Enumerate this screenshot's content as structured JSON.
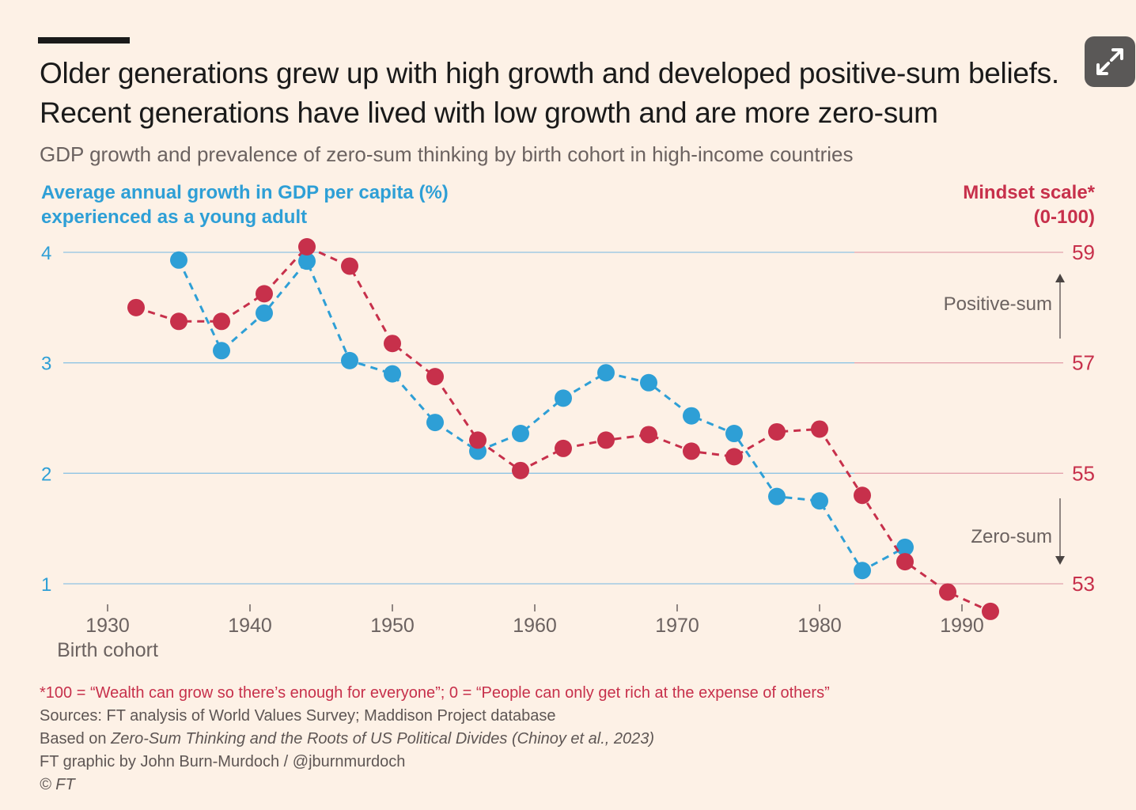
{
  "title": "Older generations grew up with high growth and developed positive-sum beliefs. Recent generations have lived with low growth and are more zero-sum",
  "subtitle": "GDP growth and prevalence of zero-sum thinking by birth cohort in high-income countries",
  "left_axis_label": [
    "Average annual growth in GDP per capita (%)",
    "experienced as a young adult"
  ],
  "right_axis_label": [
    "Mindset scale*",
    "(0-100)"
  ],
  "footnotes": {
    "asterisk": "*100 = “Wealth can grow so there’s enough for everyone”; 0 = “People can only get rich at the expense of others”",
    "sources": "Sources: FT analysis of World Values Survey; Maddison Project database",
    "based_on_prefix": "Based on ",
    "based_on_title": "Zero-Sum Thinking and the Roots of US Political Divides (Chinoy et al., 2023)",
    "credit": "FT graphic by John Burn-Murdoch / @jburnmurdoch",
    "copyright": "© FT"
  },
  "colors": {
    "gdp": "#2e9fd6",
    "mindset": "#c7304b",
    "background": "#fdf1e6"
  },
  "chart_data": {
    "type": "line",
    "xlabel": "Birth cohort",
    "x_ticks": [
      1930,
      1940,
      1950,
      1960,
      1970,
      1980,
      1990
    ],
    "xlim": [
      1926,
      1995
    ],
    "y_left": {
      "label": "Average annual growth in GDP per capita (%) experienced as a young adult",
      "lim": [
        1,
        4
      ],
      "ticks": [
        1,
        2,
        3,
        4
      ]
    },
    "y_right": {
      "label": "Mindset scale* (0-100)",
      "lim": [
        53,
        59
      ],
      "ticks": [
        53,
        55,
        57,
        59
      ]
    },
    "annotations": [
      {
        "text": "Positive-sum",
        "direction": "up"
      },
      {
        "text": "Zero-sum",
        "direction": "down"
      }
    ],
    "grid": true,
    "series": [
      {
        "axis": "left",
        "style": "dashed-with-markers",
        "x": [
          1935,
          1938,
          1941,
          1944,
          1947,
          1950,
          1953,
          1956,
          1959,
          1962,
          1965,
          1968,
          1971,
          1974,
          1977,
          1980,
          1983,
          1986
        ],
        "y": [
          3.93,
          3.11,
          3.45,
          3.92,
          3.02,
          2.9,
          2.46,
          2.2,
          2.36,
          2.68,
          2.91,
          2.82,
          2.52,
          2.36,
          1.79,
          1.75,
          1.12,
          1.33
        ]
      },
      {
        "axis": "right",
        "style": "dashed-with-markers",
        "x": [
          1932,
          1935,
          1938,
          1941,
          1944,
          1947,
          1950,
          1953,
          1956,
          1959,
          1962,
          1965,
          1968,
          1971,
          1974,
          1977,
          1980,
          1983,
          1986,
          1989,
          1992
        ],
        "y": [
          58.0,
          57.75,
          57.75,
          58.25,
          59.1,
          58.75,
          57.35,
          56.75,
          55.6,
          55.05,
          55.45,
          55.6,
          55.7,
          55.4,
          55.3,
          55.75,
          55.8,
          54.6,
          53.4,
          52.85,
          52.5
        ]
      }
    ]
  }
}
